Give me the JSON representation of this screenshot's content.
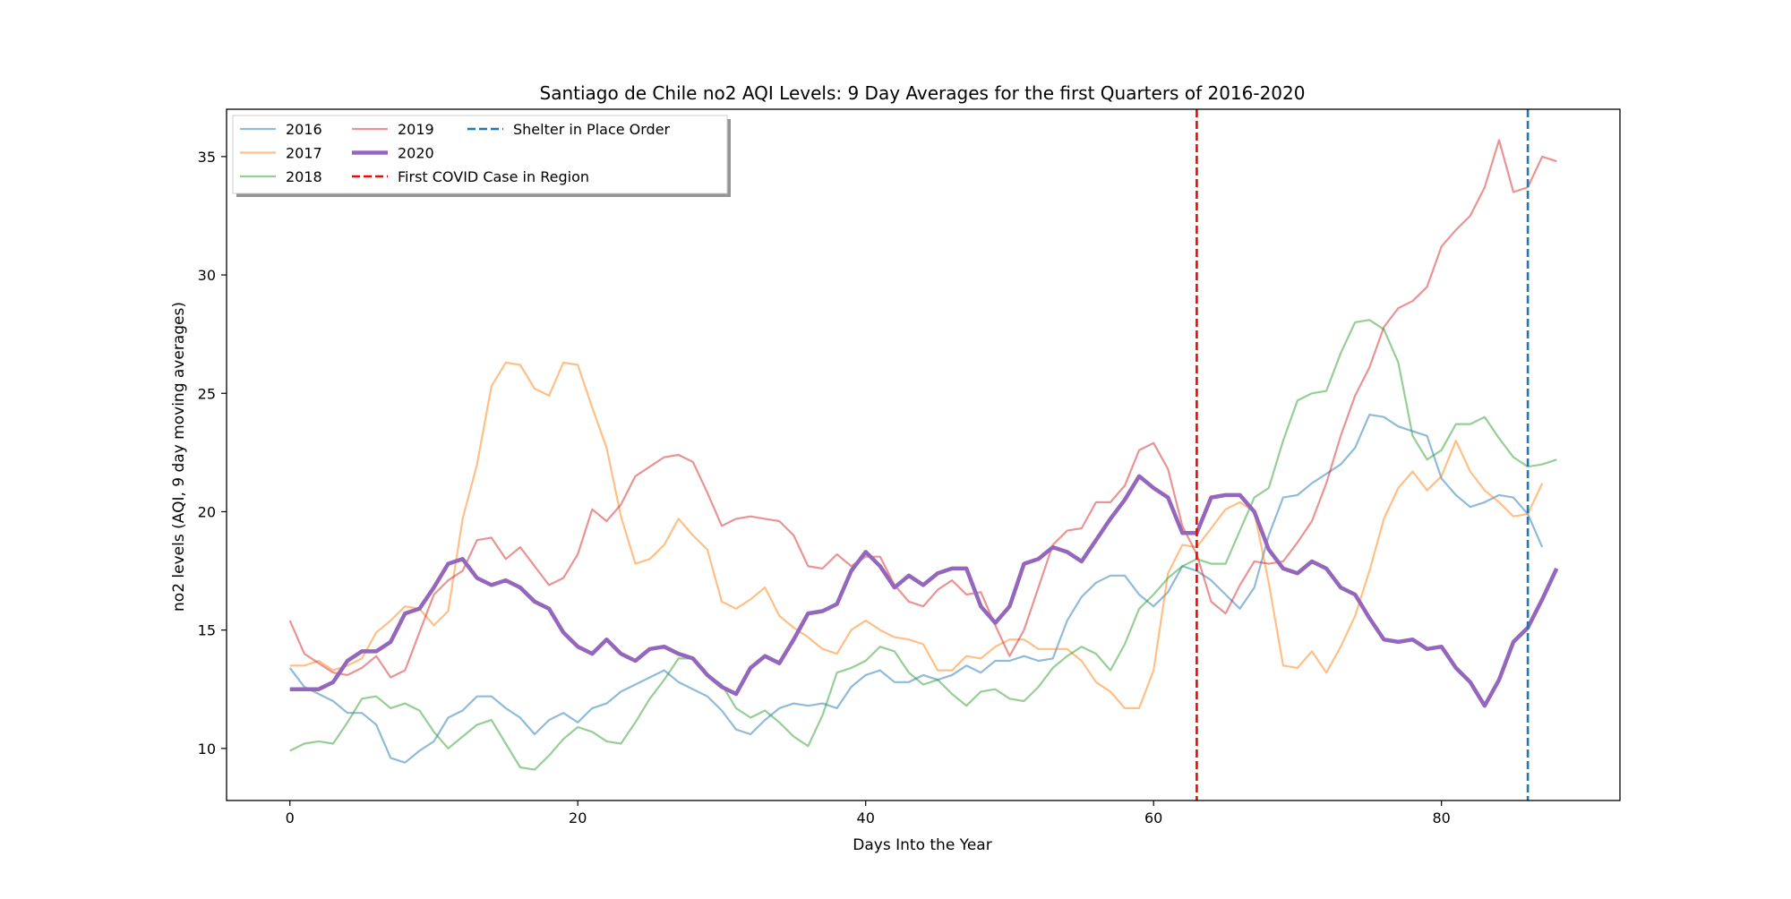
{
  "chart_data": {
    "type": "line",
    "title": "Santiago de Chile no2 AQI Levels: 9 Day Averages for the first Quarters of 2016-2020",
    "xlabel": "Days Into the Year",
    "ylabel": "no2 levels (AQI, 9 day moving averages)",
    "xlim": [
      -4.4,
      92.4
    ],
    "ylim": [
      7.8,
      37.0
    ],
    "xticks": [
      0,
      20,
      40,
      60,
      80
    ],
    "yticks": [
      10,
      15,
      20,
      25,
      30,
      35
    ],
    "grid": false,
    "legend_position": "top-left",
    "series": [
      {
        "name": "2016",
        "color": "#1f77b4",
        "emphasis": false,
        "values": [
          13.4,
          12.6,
          12.3,
          12.0,
          11.5,
          11.5,
          11.0,
          9.6,
          9.4,
          9.9,
          10.3,
          11.3,
          11.6,
          12.2,
          12.2,
          11.7,
          11.3,
          10.6,
          11.2,
          11.5,
          11.1,
          11.7,
          11.9,
          12.4,
          12.7,
          13.0,
          13.3,
          12.8,
          12.5,
          12.2,
          11.6,
          10.8,
          10.6,
          11.2,
          11.7,
          11.9,
          11.8,
          11.9,
          11.7,
          12.6,
          13.1,
          13.3,
          12.8,
          12.8,
          13.1,
          12.9,
          13.1,
          13.5,
          13.2,
          13.7,
          13.7,
          13.9,
          13.7,
          13.8,
          15.4,
          16.4,
          17.0,
          17.3,
          17.3,
          16.5,
          16.0,
          16.6,
          17.7,
          17.5,
          17.1,
          16.5,
          15.9,
          16.8,
          19.0,
          20.6,
          20.7,
          21.2,
          21.6,
          22.0,
          22.7,
          24.1,
          24.0,
          23.6,
          23.4,
          23.2,
          21.4,
          20.7,
          20.2,
          20.4,
          20.7,
          20.6,
          19.9,
          18.5
        ]
      },
      {
        "name": "2017",
        "color": "#ff7f0e",
        "emphasis": false,
        "values": [
          13.5,
          13.5,
          13.7,
          13.3,
          13.5,
          13.8,
          14.9,
          15.4,
          16.0,
          15.9,
          15.2,
          15.8,
          19.7,
          22.0,
          25.3,
          26.3,
          26.2,
          25.2,
          24.9,
          26.3,
          26.2,
          24.4,
          22.7,
          19.8,
          17.8,
          18.0,
          18.6,
          19.7,
          19.0,
          18.4,
          16.2,
          15.9,
          16.3,
          16.8,
          15.6,
          15.1,
          14.7,
          14.2,
          14.0,
          15.0,
          15.4,
          15.0,
          14.7,
          14.6,
          14.4,
          13.3,
          13.3,
          13.9,
          13.8,
          14.3,
          14.6,
          14.6,
          14.2,
          14.2,
          14.2,
          13.7,
          12.8,
          12.4,
          11.7,
          11.7,
          13.3,
          17.4,
          18.6,
          18.5,
          19.3,
          20.1,
          20.4,
          20.0,
          17.0,
          13.5,
          13.4,
          14.1,
          13.2,
          14.3,
          15.6,
          17.5,
          19.7,
          21.0,
          21.7,
          20.9,
          21.5,
          23.0,
          21.7,
          20.9,
          20.4,
          19.8,
          19.9,
          21.2
        ]
      },
      {
        "name": "2018",
        "color": "#2ca02c",
        "emphasis": false,
        "values": [
          9.9,
          10.2,
          10.3,
          10.2,
          11.1,
          12.1,
          12.2,
          11.7,
          11.9,
          11.6,
          10.7,
          10.0,
          10.5,
          11.0,
          11.2,
          10.2,
          9.2,
          9.1,
          9.7,
          10.4,
          10.9,
          10.7,
          10.3,
          10.2,
          11.1,
          12.1,
          12.9,
          13.8,
          13.8,
          13.1,
          12.7,
          11.7,
          11.3,
          11.6,
          11.1,
          10.5,
          10.1,
          11.4,
          13.2,
          13.4,
          13.7,
          14.3,
          14.1,
          13.2,
          12.7,
          12.9,
          12.3,
          11.8,
          12.4,
          12.5,
          12.1,
          12.0,
          12.6,
          13.4,
          13.9,
          14.3,
          14.0,
          13.3,
          14.4,
          15.9,
          16.5,
          17.2,
          17.7,
          18.0,
          17.8,
          17.8,
          19.2,
          20.6,
          21.0,
          23.0,
          24.7,
          25.0,
          25.1,
          26.7,
          28.0,
          28.1,
          27.7,
          26.3,
          23.2,
          22.2,
          22.6,
          23.7,
          23.7,
          24.0,
          23.1,
          22.3,
          21.9,
          22.0,
          22.2
        ]
      },
      {
        "name": "2019",
        "color": "#d62728",
        "emphasis": false,
        "values": [
          15.4,
          14.0,
          13.6,
          13.2,
          13.1,
          13.4,
          13.9,
          13.0,
          13.3,
          14.9,
          16.5,
          17.1,
          17.5,
          18.8,
          18.9,
          18.0,
          18.5,
          17.7,
          16.9,
          17.2,
          18.2,
          20.1,
          19.6,
          20.3,
          21.5,
          21.9,
          22.3,
          22.4,
          22.1,
          20.8,
          19.4,
          19.7,
          19.8,
          19.7,
          19.6,
          19.0,
          17.7,
          17.6,
          18.2,
          17.7,
          18.1,
          18.1,
          16.9,
          16.2,
          16.0,
          16.7,
          17.1,
          16.5,
          16.6,
          15.2,
          13.9,
          15.0,
          16.8,
          18.6,
          19.2,
          19.3,
          20.4,
          20.4,
          21.1,
          22.6,
          22.9,
          21.8,
          19.4,
          18.2,
          16.2,
          15.7,
          16.9,
          17.9,
          17.8,
          17.9,
          18.7,
          19.6,
          21.2,
          23.2,
          24.9,
          26.1,
          27.8,
          28.6,
          28.9,
          29.5,
          31.2,
          31.9,
          32.5,
          33.7,
          35.7,
          33.5,
          33.7,
          35.0,
          34.8
        ]
      },
      {
        "name": "2020",
        "color": "#9467bd",
        "emphasis": true,
        "values": [
          12.5,
          12.5,
          12.5,
          12.8,
          13.7,
          14.1,
          14.1,
          14.5,
          15.7,
          15.9,
          16.8,
          17.8,
          18.0,
          17.2,
          16.9,
          17.1,
          16.8,
          16.2,
          15.9,
          14.9,
          14.3,
          14.0,
          14.6,
          14.0,
          13.7,
          14.2,
          14.3,
          14.0,
          13.8,
          13.1,
          12.6,
          12.3,
          13.4,
          13.9,
          13.6,
          14.6,
          15.7,
          15.8,
          16.1,
          17.5,
          18.3,
          17.7,
          16.8,
          17.3,
          16.9,
          17.4,
          17.6,
          17.6,
          16.0,
          15.3,
          16.0,
          17.8,
          18.0,
          18.5,
          18.3,
          17.9,
          18.8,
          19.7,
          20.5,
          21.5,
          21.0,
          20.6,
          19.1,
          19.1,
          20.6,
          20.7,
          20.7,
          20.0,
          18.4,
          17.6,
          17.4,
          17.9,
          17.6,
          16.8,
          16.5,
          15.5,
          14.6,
          14.5,
          14.6,
          14.2,
          14.3,
          13.4,
          12.8,
          11.8,
          12.9,
          14.5,
          15.1,
          16.3,
          17.6
        ]
      }
    ],
    "vlines": [
      {
        "name": "First COVID Case in Region",
        "x": 63,
        "color": "#ff0000",
        "style": "dashed"
      },
      {
        "name": "Shelter in Place Order",
        "x": 86,
        "color": "#1f77b4",
        "style": "dashed"
      }
    ]
  }
}
